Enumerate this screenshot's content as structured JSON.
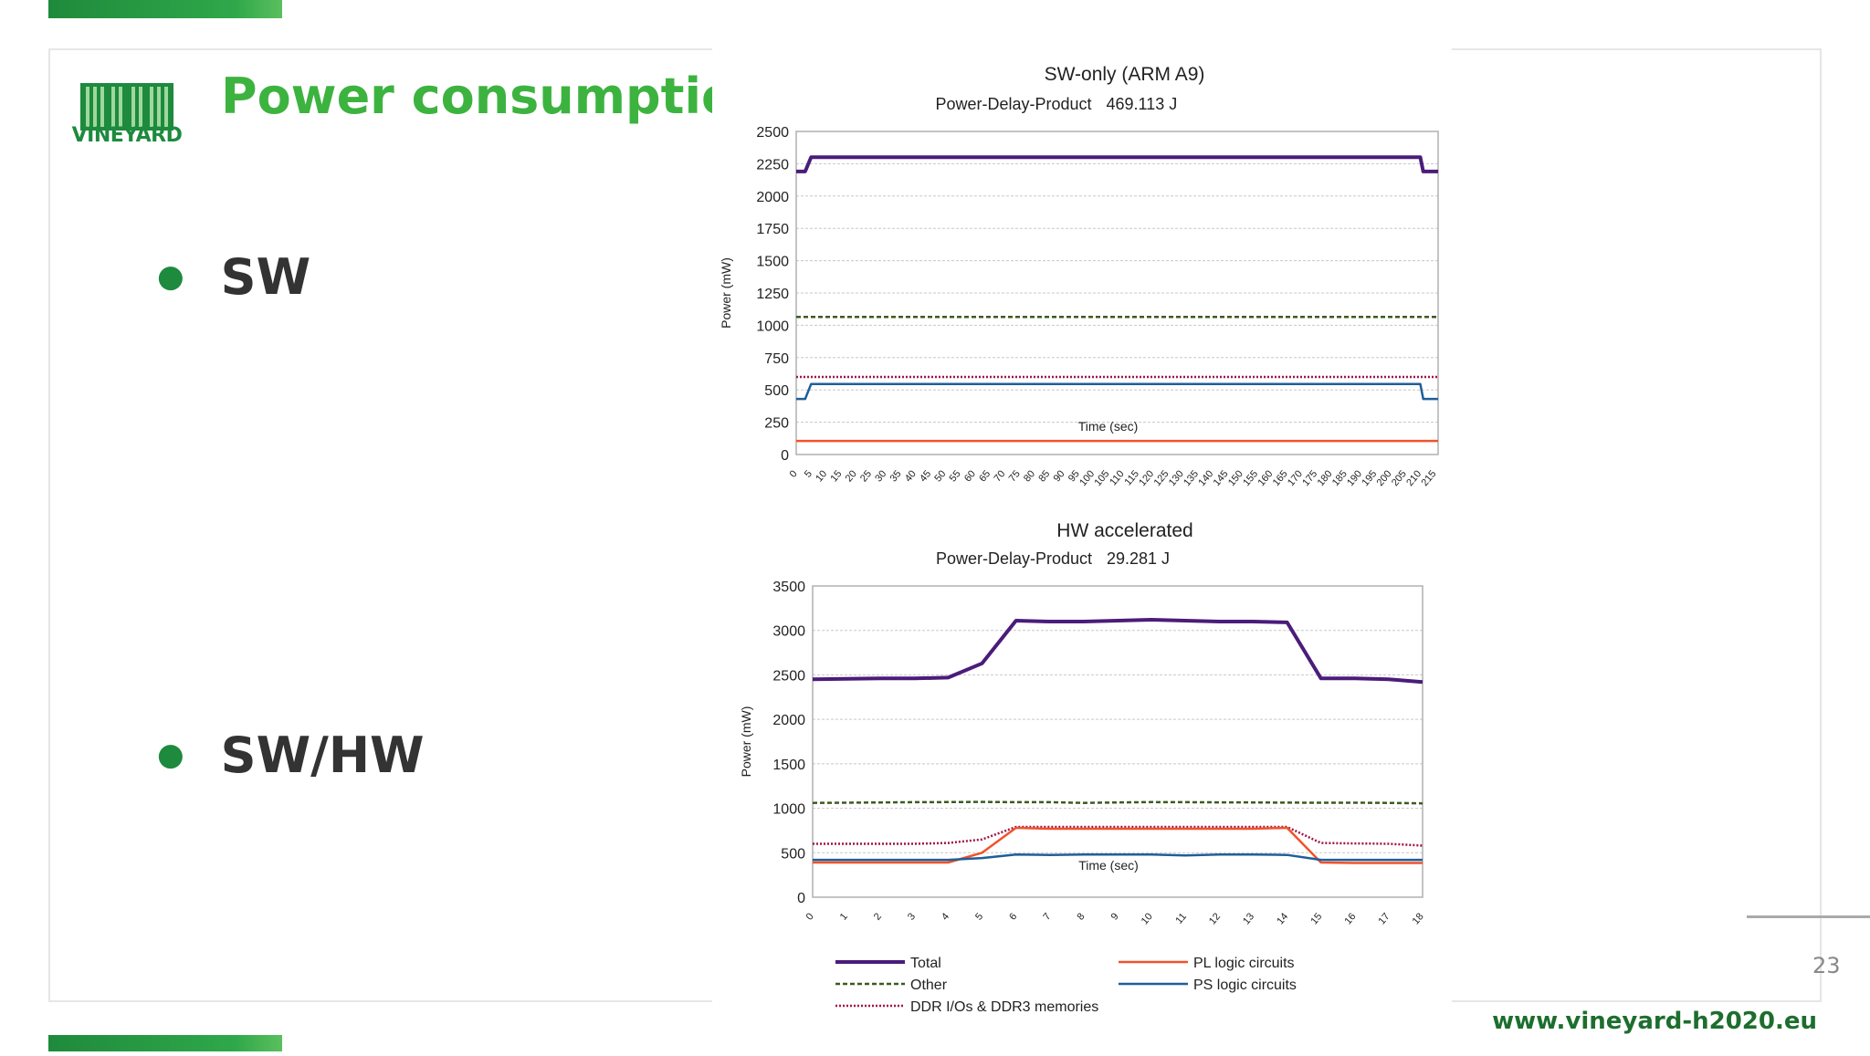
{
  "slide": {
    "title": "Power consumption",
    "logo_text": "VINEYARD",
    "bullets": [
      "SW",
      "SW/HW"
    ],
    "page_number": "23",
    "url": "www.vineyard-h2020.eu"
  },
  "colors": {
    "green": "#3db33f",
    "dark_green": "#1d8a3d",
    "total": "#4b1c7a",
    "other": "#3d5a1e",
    "ddr": "#a0154a",
    "pl": "#f0522a",
    "ps": "#1f5e99"
  },
  "chart_data": [
    {
      "type": "line",
      "title": "SW-only (ARM A9)",
      "subtitle_label": "Power-Delay-Product",
      "subtitle_value": "469.113 J",
      "xlabel": "Time (sec)",
      "ylabel": "Power (mW)",
      "ylim": [
        0,
        2500
      ],
      "yticks": [
        0,
        250,
        500,
        750,
        1000,
        1250,
        1500,
        1750,
        2000,
        2250,
        2500
      ],
      "xlim": [
        0,
        216
      ],
      "xticks": [
        "0",
        "5",
        "10",
        "15",
        "20",
        "25",
        "30",
        "35",
        "40",
        "45",
        "50",
        "55",
        "60",
        "65",
        "70",
        "75",
        "80",
        "85",
        "90",
        "95",
        "100",
        "105",
        "110",
        "115",
        "120",
        "125",
        "130",
        "135",
        "140",
        "145",
        "150",
        "155",
        "160",
        "165",
        "170",
        "175",
        "180",
        "185",
        "190",
        "195",
        "200",
        "205",
        "210",
        "215"
      ],
      "grid": true,
      "series": [
        {
          "name": "Total",
          "x": [
            0,
            3,
            5,
            210,
            211,
            216
          ],
          "y": [
            2190,
            2190,
            2300,
            2300,
            2190,
            2190
          ]
        },
        {
          "name": "Other",
          "x": [
            0,
            216
          ],
          "y": [
            1065,
            1065
          ]
        },
        {
          "name": "DDR I/Os & DDR3 memories",
          "x": [
            0,
            216
          ],
          "y": [
            600,
            600
          ]
        },
        {
          "name": "PS logic circuits",
          "x": [
            0,
            3,
            5,
            210,
            211,
            216
          ],
          "y": [
            430,
            430,
            545,
            545,
            430,
            430
          ]
        },
        {
          "name": "PL logic circuits",
          "x": [
            0,
            216
          ],
          "y": [
            105,
            105
          ]
        }
      ]
    },
    {
      "type": "line",
      "title": "HW accelerated",
      "subtitle_label": "Power-Delay-Product",
      "subtitle_value": "29.281 J",
      "xlabel": "Time (sec)",
      "ylabel": "Power (mW)",
      "ylim": [
        0,
        3500
      ],
      "yticks": [
        0,
        500,
        1000,
        1500,
        2000,
        2500,
        3000,
        3500
      ],
      "xlim": [
        0,
        18
      ],
      "xticks": [
        "0",
        "1",
        "2",
        "3",
        "4",
        "5",
        "6",
        "7",
        "8",
        "9",
        "10",
        "11",
        "12",
        "13",
        "14",
        "15",
        "16",
        "17",
        "18"
      ],
      "grid": true,
      "series": [
        {
          "name": "Total",
          "x": [
            0,
            1,
            2,
            3,
            4,
            5,
            6,
            7,
            8,
            9,
            10,
            11,
            12,
            13,
            14,
            15,
            16,
            17,
            18
          ],
          "y": [
            2450,
            2455,
            2460,
            2460,
            2470,
            2630,
            3110,
            3100,
            3100,
            3110,
            3120,
            3110,
            3100,
            3100,
            3090,
            2460,
            2460,
            2450,
            2420
          ]
        },
        {
          "name": "Other",
          "x": [
            0,
            1,
            2,
            3,
            4,
            5,
            6,
            7,
            8,
            9,
            10,
            11,
            12,
            13,
            14,
            15,
            16,
            17,
            18
          ],
          "y": [
            1060,
            1062,
            1065,
            1068,
            1070,
            1072,
            1068,
            1068,
            1060,
            1065,
            1070,
            1068,
            1066,
            1065,
            1063,
            1062,
            1062,
            1060,
            1055
          ]
        },
        {
          "name": "DDR I/Os & DDR3 memories",
          "x": [
            0,
            1,
            2,
            3,
            4,
            5,
            6,
            7,
            8,
            9,
            10,
            11,
            12,
            13,
            14,
            15,
            16,
            17,
            18
          ],
          "y": [
            600,
            600,
            600,
            600,
            610,
            650,
            790,
            790,
            790,
            790,
            790,
            790,
            790,
            790,
            790,
            610,
            605,
            600,
            580
          ]
        },
        {
          "name": "PL logic circuits",
          "x": [
            0,
            1,
            2,
            3,
            4,
            5,
            6,
            7,
            8,
            9,
            10,
            11,
            12,
            13,
            14,
            15,
            16,
            17,
            18
          ],
          "y": [
            390,
            390,
            390,
            390,
            390,
            500,
            780,
            770,
            770,
            770,
            770,
            770,
            770,
            770,
            780,
            390,
            385,
            385,
            385
          ]
        },
        {
          "name": "PS logic circuits",
          "x": [
            0,
            1,
            2,
            3,
            4,
            5,
            6,
            7,
            8,
            9,
            10,
            11,
            12,
            13,
            14,
            15,
            16,
            17,
            18
          ],
          "y": [
            420,
            420,
            420,
            420,
            420,
            440,
            480,
            475,
            480,
            480,
            480,
            470,
            480,
            480,
            475,
            420,
            420,
            420,
            420
          ]
        }
      ]
    }
  ],
  "legend": [
    {
      "name": "Total",
      "style": "solid"
    },
    {
      "name": "PL logic circuits",
      "style": "solid"
    },
    {
      "name": "Other",
      "style": "dashed"
    },
    {
      "name": "PS logic circuits",
      "style": "solid"
    },
    {
      "name": "DDR I/Os & DDR3 memories",
      "style": "dotted"
    }
  ]
}
